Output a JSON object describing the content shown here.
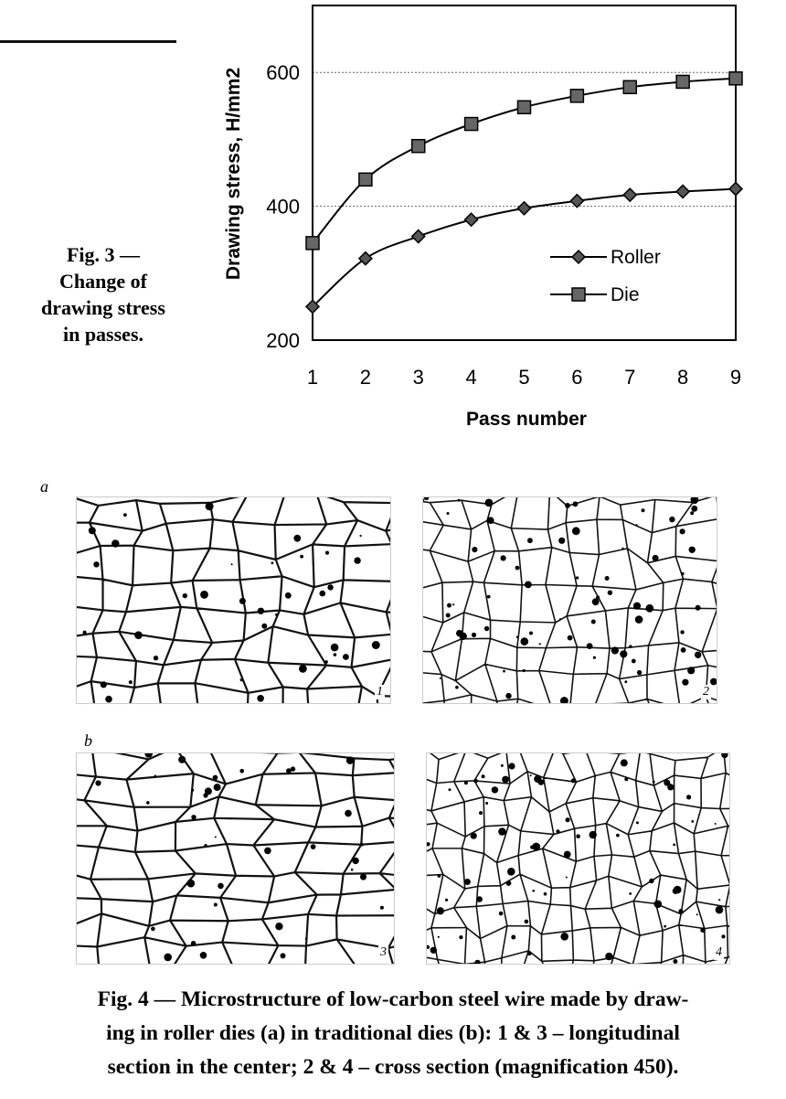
{
  "fig3": {
    "caption_lines": [
      "Fig. 3 —",
      "Change of",
      "drawing stress",
      "in passes."
    ]
  },
  "chart_data": {
    "type": "line",
    "xlabel": "Pass number",
    "ylabel": "Drawing stress, H/mm2",
    "x": [
      1,
      2,
      3,
      4,
      5,
      6,
      7,
      8,
      9
    ],
    "xlim": [
      1,
      9
    ],
    "ylim": [
      200,
      700
    ],
    "yticks": [
      200,
      400,
      600
    ],
    "grid": "horizontal at 400 and 600",
    "legend_position": "lower-right",
    "series": [
      {
        "name": "Roller",
        "marker": "diamond",
        "values": [
          250,
          322,
          355,
          380,
          397,
          408,
          417,
          422,
          426
        ]
      },
      {
        "name": "Die",
        "marker": "square",
        "values": [
          345,
          440,
          490,
          523,
          548,
          565,
          578,
          586,
          591
        ]
      }
    ]
  },
  "fig4": {
    "panel_a": "a",
    "panel_b": "b",
    "image_numbers": [
      "1",
      "2",
      "3",
      "4"
    ],
    "caption_lines": [
      "Fig. 4 — Microstructure of low-carbon steel wire made by draw-",
      "ing in roller dies (a) in traditional dies (b): 1 & 3 – longitudinal",
      "section in the center; 2 & 4 – cross section (magnification 450)."
    ]
  }
}
